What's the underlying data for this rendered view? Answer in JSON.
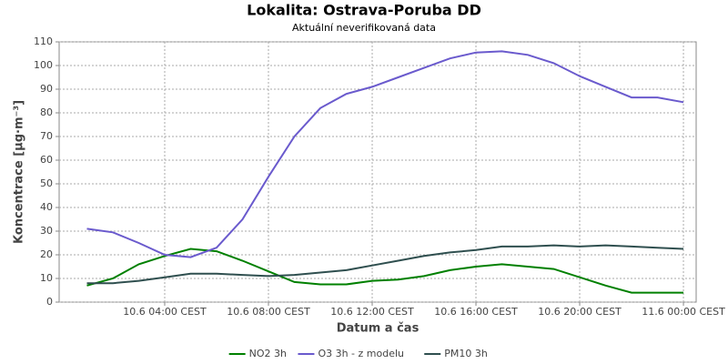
{
  "chart_data": {
    "type": "line",
    "title": "Lokalita: Ostrava-Poruba DD",
    "subtitle": "Aktuální neverifikovaná data",
    "x_label": "Datum a čas",
    "y_label": "Koncentrace [µg·m⁻³]",
    "x": [
      1,
      2,
      3,
      4,
      5,
      6,
      7,
      8,
      9,
      10,
      11,
      12,
      13,
      14,
      15,
      16,
      17,
      18,
      19,
      20,
      21,
      22,
      23,
      24
    ],
    "series": [
      {
        "name": "NO2 3h",
        "color": "#008000",
        "values": [
          7,
          10,
          16,
          19.5,
          22.5,
          21.5,
          17.5,
          13,
          8.5,
          7.5,
          7.5,
          9,
          9.5,
          11,
          13.5,
          15,
          16,
          15,
          14,
          10.5,
          7,
          4,
          4,
          4
        ]
      },
      {
        "name": "O3 3h - z modelu",
        "color": "#6a5acd",
        "values": [
          31,
          29.5,
          25,
          20,
          19,
          23,
          35,
          53,
          70,
          82,
          88,
          91,
          95,
          99,
          103,
          105.5,
          106,
          104.5,
          101,
          95.5,
          91,
          86.5,
          86.5,
          84.5
        ]
      },
      {
        "name": "PM10 3h",
        "color": "#2f4f4f",
        "values": [
          8,
          8,
          9,
          10.5,
          12,
          12,
          11.5,
          11,
          11.5,
          12.5,
          13.5,
          15.5,
          17.5,
          19.5,
          21,
          22,
          23.5,
          23.5,
          24,
          23.5,
          24,
          23.5,
          23,
          22.5
        ]
      }
    ],
    "xlim": [
      -0.07,
      24.49
    ],
    "xticks": [
      {
        "value": 4,
        "label": "10.6 04:00 CEST"
      },
      {
        "value": 8,
        "label": "10.6 08:00 CEST"
      },
      {
        "value": 12,
        "label": "10.6 12:00 CEST"
      },
      {
        "value": 16,
        "label": "10.6 16:00 CEST"
      },
      {
        "value": 20,
        "label": "10.6 20:00 CEST"
      },
      {
        "value": 24,
        "label": "11.6 00:00 CEST"
      }
    ],
    "ylim": [
      0,
      110
    ],
    "yticks": [
      0,
      10,
      20,
      30,
      40,
      50,
      60,
      70,
      80,
      90,
      100,
      110
    ],
    "grid": true,
    "legend": "bottom"
  }
}
